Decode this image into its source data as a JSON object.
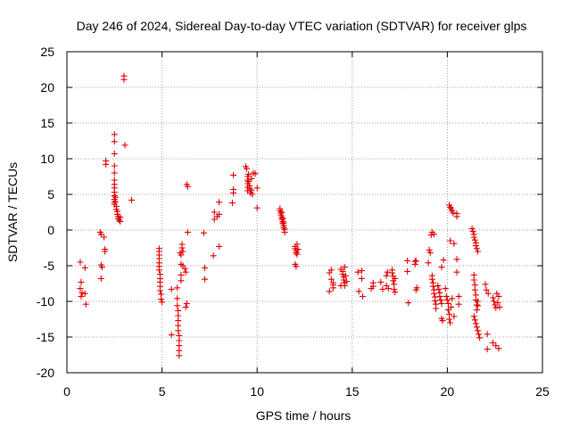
{
  "chart_data": {
    "type": "scatter",
    "title": "Day 246 of 2024, Sidereal Day-to-day VTEC variation (SDTVAR) for receiver glps",
    "xlabel": "GPS time / hours",
    "ylabel": "SDTVAR / TECUs",
    "xlim": [
      0,
      25
    ],
    "ylim": [
      -20,
      25
    ],
    "xticks": [
      0,
      5,
      10,
      15,
      20,
      25
    ],
    "yticks": [
      -20,
      -15,
      -10,
      -5,
      0,
      5,
      10,
      15,
      20,
      25
    ],
    "xtick_labels": [
      "0",
      "5",
      "10",
      "15",
      "20",
      "25"
    ],
    "ytick_labels": [
      "-20",
      "-15",
      "-10",
      "-5",
      "0",
      "5",
      "10",
      "15",
      "20",
      "25"
    ],
    "grid": true,
    "marker": "+",
    "color": "#e00000",
    "series": [
      {
        "name": "SDTVAR",
        "points": [
          [
            0.7,
            -4.5
          ],
          [
            0.75,
            -7.3
          ],
          [
            0.7,
            -8.2
          ],
          [
            0.8,
            -8.8
          ],
          [
            0.75,
            -9.3
          ],
          [
            0.95,
            -5.3
          ],
          [
            0.95,
            -8.9
          ],
          [
            1.0,
            -10.4
          ],
          [
            1.75,
            -0.3
          ],
          [
            1.8,
            -0.6
          ],
          [
            1.85,
            -5.2
          ],
          [
            1.8,
            -4.9
          ],
          [
            1.8,
            -6.8
          ],
          [
            1.95,
            -1.0
          ],
          [
            2.0,
            -2.7
          ],
          [
            2.0,
            -3.0
          ],
          [
            2.05,
            9.7
          ],
          [
            2.05,
            9.2
          ],
          [
            2.5,
            13.4
          ],
          [
            2.5,
            12.4
          ],
          [
            2.5,
            10.7
          ],
          [
            2.5,
            9.0
          ],
          [
            2.5,
            8.0
          ],
          [
            2.5,
            7.0
          ],
          [
            2.5,
            6.4
          ],
          [
            2.5,
            5.9
          ],
          [
            2.5,
            5.3
          ],
          [
            2.5,
            4.8
          ],
          [
            2.5,
            4.3
          ],
          [
            2.5,
            3.9
          ],
          [
            2.5,
            3.6
          ],
          [
            2.55,
            4.6
          ],
          [
            2.55,
            4.0
          ],
          [
            2.6,
            3.3
          ],
          [
            2.6,
            2.9
          ],
          [
            2.65,
            2.6
          ],
          [
            2.65,
            2.2
          ],
          [
            2.7,
            1.9
          ],
          [
            2.7,
            1.6
          ],
          [
            2.75,
            1.4
          ],
          [
            2.8,
            1.8
          ],
          [
            2.8,
            1.2
          ],
          [
            3.0,
            21.6
          ],
          [
            3.0,
            21.1
          ],
          [
            3.05,
            11.9
          ],
          [
            3.4,
            4.2
          ],
          [
            4.85,
            -2.6
          ],
          [
            4.85,
            -3.0
          ],
          [
            4.85,
            -3.5
          ],
          [
            4.85,
            -4.0
          ],
          [
            4.85,
            -4.6
          ],
          [
            4.85,
            -5.1
          ],
          [
            4.85,
            -5.6
          ],
          [
            4.9,
            -6.2
          ],
          [
            4.9,
            -6.8
          ],
          [
            4.9,
            -7.3
          ],
          [
            4.9,
            -7.9
          ],
          [
            4.9,
            -8.5
          ],
          [
            4.95,
            -9.0
          ],
          [
            4.95,
            -9.7
          ],
          [
            5.0,
            -10.1
          ],
          [
            5.5,
            -14.7
          ],
          [
            5.5,
            -8.3
          ],
          [
            5.8,
            -8.1
          ],
          [
            5.8,
            -9.6
          ],
          [
            5.8,
            -10.6
          ],
          [
            5.85,
            -11.3
          ],
          [
            5.85,
            -12.0
          ],
          [
            5.85,
            -12.7
          ],
          [
            5.85,
            -13.4
          ],
          [
            5.85,
            -14.1
          ],
          [
            5.9,
            -14.8
          ],
          [
            5.9,
            -15.5
          ],
          [
            5.9,
            -16.2
          ],
          [
            5.9,
            -16.9
          ],
          [
            5.9,
            -17.6
          ],
          [
            5.95,
            -3.2
          ],
          [
            6.0,
            -3.5
          ],
          [
            6.0,
            -4.8
          ],
          [
            6.0,
            -6.3
          ],
          [
            6.0,
            -7.1
          ],
          [
            6.05,
            -2.5
          ],
          [
            6.05,
            -2.0
          ],
          [
            6.1,
            -3.0
          ],
          [
            6.1,
            -5.0
          ],
          [
            6.2,
            -5.4
          ],
          [
            6.25,
            -5.9
          ],
          [
            6.25,
            -10.8
          ],
          [
            6.3,
            -10.3
          ],
          [
            6.3,
            6.4
          ],
          [
            6.35,
            6.1
          ],
          [
            6.35,
            -0.3
          ],
          [
            7.2,
            -0.4
          ],
          [
            7.25,
            -5.3
          ],
          [
            7.25,
            -6.9
          ],
          [
            7.7,
            -3.6
          ],
          [
            7.75,
            1.5
          ],
          [
            7.75,
            2.5
          ],
          [
            7.9,
            1.9
          ],
          [
            8.0,
            3.9
          ],
          [
            8.0,
            2.2
          ],
          [
            8.0,
            -2.3
          ],
          [
            8.7,
            3.8
          ],
          [
            8.75,
            5.2
          ],
          [
            8.75,
            5.7
          ],
          [
            8.75,
            7.7
          ],
          [
            9.4,
            8.9
          ],
          [
            9.45,
            8.6
          ],
          [
            9.5,
            7.5
          ],
          [
            9.5,
            7.0
          ],
          [
            9.5,
            6.5
          ],
          [
            9.5,
            6.0
          ],
          [
            9.5,
            5.5
          ],
          [
            9.55,
            7.8
          ],
          [
            9.55,
            6.8
          ],
          [
            9.6,
            6.2
          ],
          [
            9.6,
            5.8
          ],
          [
            9.65,
            5.2
          ],
          [
            9.7,
            5.6
          ],
          [
            9.7,
            7.2
          ],
          [
            9.75,
            5.0
          ],
          [
            9.8,
            8.0
          ],
          [
            9.9,
            7.9
          ],
          [
            10.0,
            5.9
          ],
          [
            10.0,
            3.1
          ],
          [
            11.2,
            3.0
          ],
          [
            11.2,
            2.7
          ],
          [
            11.25,
            2.4
          ],
          [
            11.25,
            2.1
          ],
          [
            11.3,
            1.8
          ],
          [
            11.3,
            1.5
          ],
          [
            11.35,
            1.2
          ],
          [
            11.35,
            0.9
          ],
          [
            11.4,
            0.6
          ],
          [
            11.4,
            0.3
          ],
          [
            11.45,
            0.1
          ],
          [
            11.45,
            -0.3
          ],
          [
            11.3,
            2.5
          ],
          [
            11.35,
            1.6
          ],
          [
            11.4,
            1.0
          ],
          [
            12.0,
            -2.3
          ],
          [
            12.0,
            -2.6
          ],
          [
            12.05,
            -2.9
          ],
          [
            12.05,
            -3.2
          ],
          [
            12.1,
            -3.4
          ],
          [
            12.1,
            -2.0
          ],
          [
            12.15,
            -2.7
          ],
          [
            12.0,
            -4.8
          ],
          [
            12.05,
            -5.1
          ],
          [
            13.8,
            -8.6
          ],
          [
            13.8,
            -6.0
          ],
          [
            13.9,
            -5.6
          ],
          [
            13.9,
            -6.9
          ],
          [
            14.0,
            -7.4
          ],
          [
            14.0,
            -8.1
          ],
          [
            14.0,
            -7.7
          ],
          [
            14.4,
            -5.5
          ],
          [
            14.4,
            -7.8
          ],
          [
            14.5,
            -5.8
          ],
          [
            14.5,
            -6.2
          ],
          [
            14.55,
            -6.6
          ],
          [
            14.55,
            -7.0
          ],
          [
            14.6,
            -7.4
          ],
          [
            14.6,
            -7.8
          ],
          [
            14.65,
            -6.4
          ],
          [
            14.7,
            -7.2
          ],
          [
            14.6,
            -5.2
          ],
          [
            15.3,
            -5.9
          ],
          [
            15.35,
            -8.6
          ],
          [
            15.5,
            -5.7
          ],
          [
            15.5,
            -6.8
          ],
          [
            15.55,
            -9.3
          ],
          [
            16.0,
            -8.2
          ],
          [
            16.1,
            -7.4
          ],
          [
            16.1,
            -7.9
          ],
          [
            16.5,
            -7.3
          ],
          [
            16.6,
            -8.3
          ],
          [
            16.8,
            -7.8
          ],
          [
            16.8,
            -6.4
          ],
          [
            16.85,
            -5.9
          ],
          [
            16.9,
            -8.2
          ],
          [
            17.1,
            -5.6
          ],
          [
            17.1,
            -6.0
          ],
          [
            17.15,
            -6.5
          ],
          [
            17.15,
            -7.1
          ],
          [
            17.2,
            -7.6
          ],
          [
            17.2,
            -8.3
          ],
          [
            17.25,
            -8.7
          ],
          [
            17.25,
            -6.8
          ],
          [
            17.9,
            -5.8
          ],
          [
            17.9,
            -4.3
          ],
          [
            17.95,
            -10.2
          ],
          [
            18.3,
            -4.4
          ],
          [
            18.3,
            -4.8
          ],
          [
            18.35,
            -4.3
          ],
          [
            18.35,
            -8.4
          ],
          [
            18.4,
            -8.1
          ],
          [
            19.0,
            -4.6
          ],
          [
            19.05,
            -2.8
          ],
          [
            19.1,
            -3.2
          ],
          [
            19.15,
            -0.7
          ],
          [
            19.2,
            -0.3
          ],
          [
            19.3,
            -0.6
          ],
          [
            19.2,
            -6.4
          ],
          [
            19.2,
            -6.9
          ],
          [
            19.25,
            -7.4
          ],
          [
            19.25,
            -7.9
          ],
          [
            19.3,
            -8.4
          ],
          [
            19.3,
            -8.9
          ],
          [
            19.35,
            -9.4
          ],
          [
            19.35,
            -9.9
          ],
          [
            19.4,
            -10.4
          ],
          [
            19.4,
            -11.0
          ],
          [
            19.5,
            -7.8
          ],
          [
            19.55,
            -8.3
          ],
          [
            19.6,
            -8.8
          ],
          [
            19.6,
            -9.3
          ],
          [
            19.65,
            -9.8
          ],
          [
            19.7,
            -10.3
          ],
          [
            19.7,
            -12.4
          ],
          [
            19.75,
            -12.7
          ],
          [
            19.7,
            -5.2
          ],
          [
            19.8,
            -4.2
          ],
          [
            19.9,
            -8.2
          ],
          [
            19.95,
            -9.3
          ],
          [
            20.0,
            -9.8
          ],
          [
            20.05,
            -10.3
          ],
          [
            20.05,
            -11.2
          ],
          [
            20.1,
            -11.8
          ],
          [
            20.1,
            -12.5
          ],
          [
            20.15,
            -13.0
          ],
          [
            20.2,
            -10.8
          ],
          [
            20.25,
            -9.6
          ],
          [
            20.35,
            -12.1
          ],
          [
            20.1,
            3.5
          ],
          [
            20.15,
            3.2
          ],
          [
            20.2,
            3.0
          ],
          [
            20.25,
            2.7
          ],
          [
            20.3,
            2.4
          ],
          [
            20.15,
            -1.5
          ],
          [
            20.35,
            -1.9
          ],
          [
            20.5,
            2.3
          ],
          [
            20.5,
            1.9
          ],
          [
            20.5,
            -4.1
          ],
          [
            20.5,
            -5.9
          ],
          [
            20.6,
            -10.4
          ],
          [
            20.6,
            -9.3
          ],
          [
            21.3,
            0.2
          ],
          [
            21.35,
            -0.2
          ],
          [
            21.4,
            -0.6
          ],
          [
            21.4,
            -1.0
          ],
          [
            21.45,
            -1.4
          ],
          [
            21.5,
            -1.8
          ],
          [
            21.5,
            -2.2
          ],
          [
            21.55,
            -2.6
          ],
          [
            21.6,
            -3.0
          ],
          [
            21.4,
            -6.3
          ],
          [
            21.4,
            -7.0
          ],
          [
            21.45,
            -7.7
          ],
          [
            21.45,
            -8.4
          ],
          [
            21.5,
            -9.1
          ],
          [
            21.5,
            -9.8
          ],
          [
            21.55,
            -10.5
          ],
          [
            21.55,
            -11.2
          ],
          [
            21.6,
            -10.0
          ],
          [
            21.6,
            -10.6
          ],
          [
            21.4,
            -12.1
          ],
          [
            21.45,
            -12.6
          ],
          [
            21.5,
            -13.1
          ],
          [
            21.55,
            -13.6
          ],
          [
            21.6,
            -14.1
          ],
          [
            21.65,
            -14.6
          ],
          [
            21.7,
            -15.1
          ],
          [
            22.0,
            -7.6
          ],
          [
            22.05,
            -8.4
          ],
          [
            22.1,
            -14.6
          ],
          [
            22.1,
            -16.7
          ],
          [
            22.15,
            -8.9
          ],
          [
            22.4,
            -9.5
          ],
          [
            22.45,
            -10.0
          ],
          [
            22.5,
            -10.5
          ],
          [
            22.55,
            -10.9
          ],
          [
            22.6,
            -8.9
          ],
          [
            22.65,
            -10.2
          ],
          [
            22.7,
            -9.3
          ],
          [
            22.75,
            -10.8
          ],
          [
            22.4,
            -15.8
          ],
          [
            22.55,
            -16.2
          ],
          [
            22.7,
            -16.6
          ]
        ]
      }
    ]
  }
}
